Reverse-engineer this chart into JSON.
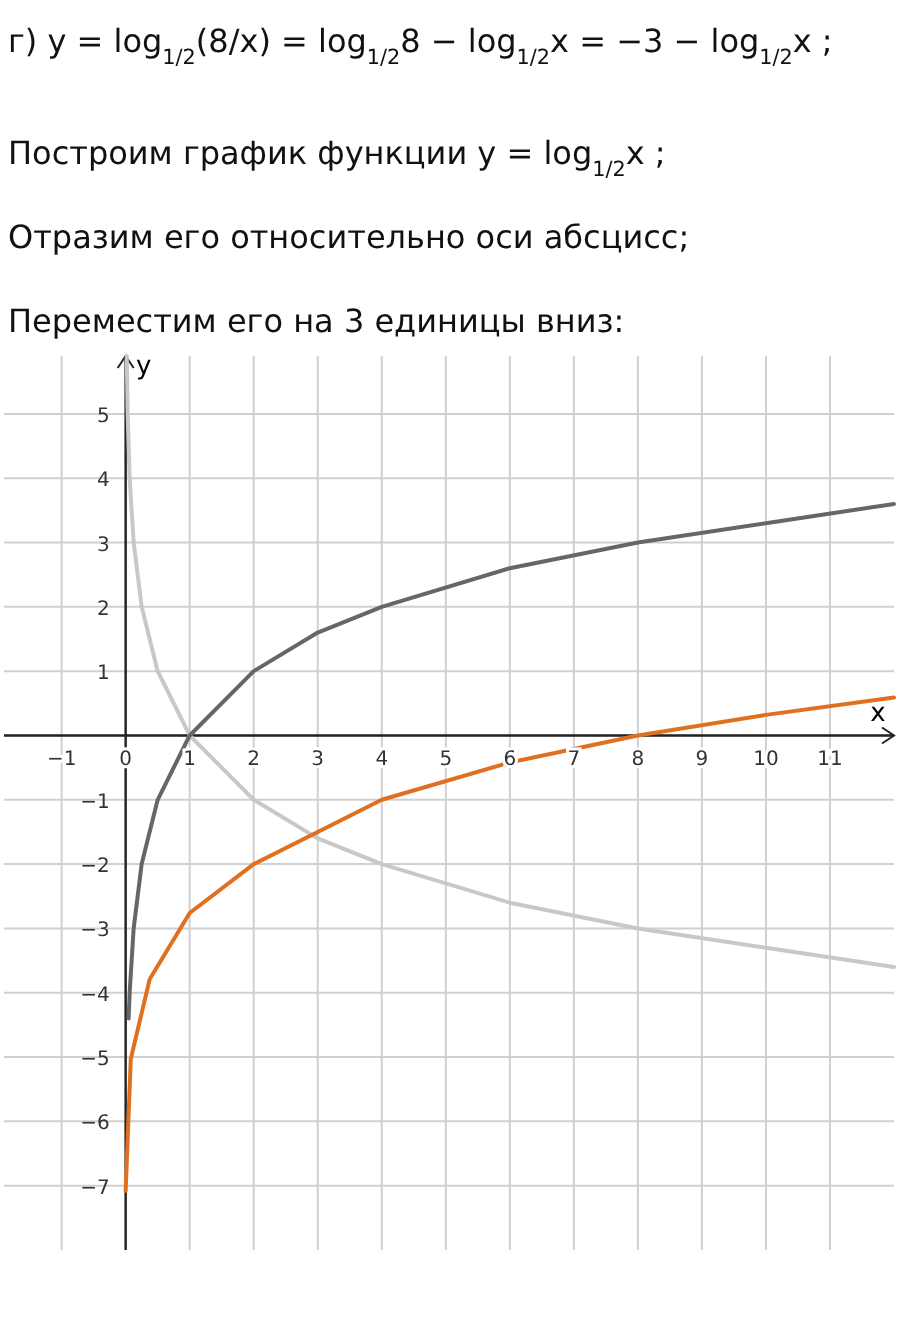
{
  "chart_data": {
    "type": "line",
    "title": "г) y = log$_{1/2}$(8/x) = log$_{1/2}$8 − log$_{1/2}$x = −3 − log$_{1/2}$x ;",
    "annotations": [
      "Построим график функции y = log$_{1/2}$x ;",
      "Отразим его относительно оси абсцисс;",
      "Переместим его на 3 единицы вниз:"
    ],
    "xlabel": "x",
    "ylabel": "y",
    "grid": true,
    "marker": "none",
    "line_style": "solid",
    "xlim": [
      -1.9,
      12
    ],
    "ylim": [
      -8,
      5.9
    ],
    "xticks": [
      -1,
      0,
      1,
      2,
      3,
      4,
      5,
      6,
      7,
      8,
      9,
      10,
      11
    ],
    "yticks": [
      -7,
      -6,
      -5,
      -4,
      -3,
      -2,
      -1,
      {
        "value": 0,
        "label": null
      },
      1,
      2,
      3,
      4,
      5
    ],
    "series": [
      {
        "color": "#c8c8c8",
        "x": [
          0.017,
          0.03125,
          0.0625,
          0.125,
          0.25,
          0.5,
          1,
          2,
          3,
          4,
          6,
          8,
          10,
          12
        ],
        "values": [
          5.9,
          5,
          4,
          3,
          2,
          1,
          0,
          -1,
          -1.6,
          -2,
          -2.6,
          -3,
          -3.3,
          -3.6
        ]
      },
      {
        "color": "#666666",
        "x": [
          0.047,
          0.0625,
          0.125,
          0.25,
          0.5,
          1,
          2,
          3,
          4,
          6,
          8,
          10,
          12
        ],
        "values": [
          -4.4,
          -4,
          -3,
          -2,
          -1,
          0,
          1,
          1.6,
          2,
          2.6,
          3,
          3.3,
          3.6
        ]
      },
      {
        "color": "#e07020",
        "x": [
          0,
          0.08,
          0.375,
          1,
          2,
          3,
          4,
          6,
          8,
          10,
          12
        ],
        "values": [
          -7.08,
          -5.03,
          -3.79,
          -2.76,
          -2,
          -1.5,
          -1,
          -0.42,
          0,
          0.32,
          0.59
        ]
      }
    ]
  }
}
